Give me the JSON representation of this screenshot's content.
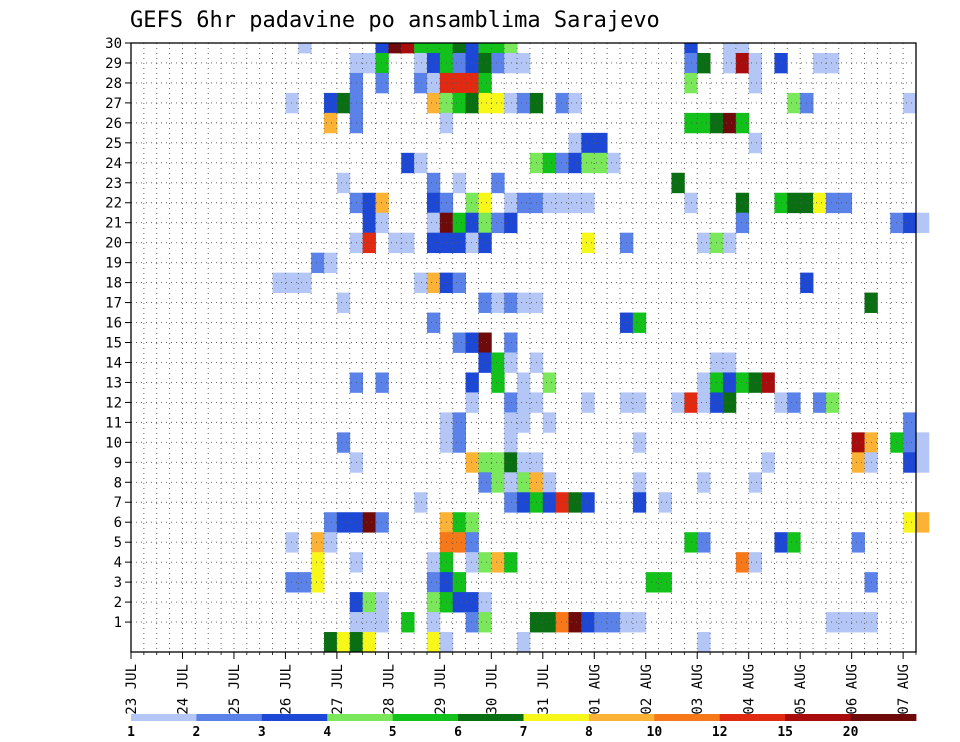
{
  "chart_data": {
    "type": "heatmap",
    "title": "GEFS 6hr padavine po ansamblima Sarajevo",
    "xlabel": "",
    "ylabel": "",
    "y_ticks": [
      1,
      2,
      3,
      4,
      5,
      6,
      7,
      8,
      9,
      10,
      11,
      12,
      13,
      14,
      15,
      16,
      17,
      18,
      19,
      20,
      21,
      22,
      23,
      24,
      25,
      26,
      27,
      28,
      29,
      30
    ],
    "x_tick_labels": [
      "23 JUL",
      "24 JUL",
      "25 JUL",
      "26 JUL",
      "27 JUL",
      "28 JUL",
      "29 JUL",
      "30 JUL",
      "31 JUL",
      "01 AUG",
      "02 AUG",
      "03 AUG",
      "04 AUG",
      "05 AUG",
      "06 AUG",
      "07 AUG"
    ],
    "x_range_6h_steps": [
      0,
      61
    ],
    "grid": true,
    "colorbar": {
      "placement": "bottom",
      "labels": [
        "1",
        "2",
        "3",
        "4",
        "5",
        "6",
        "7",
        "8",
        "10",
        "12",
        "15",
        "20"
      ],
      "colors": [
        "#b3c6f5",
        "#5a82e8",
        "#1d48d6",
        "#7ae85a",
        "#12c21a",
        "#0a6e12",
        "#f7f71a",
        "#fcb234",
        "#f77818",
        "#e02a12",
        "#a80c0c",
        "#6e0a0a"
      ]
    },
    "cells": [
      [
        30,
        13,
        0
      ],
      [
        30,
        19,
        2
      ],
      [
        30,
        20,
        11
      ],
      [
        30,
        21,
        10
      ],
      [
        30,
        22,
        4
      ],
      [
        30,
        23,
        4
      ],
      [
        30,
        24,
        4
      ],
      [
        30,
        25,
        5
      ],
      [
        30,
        26,
        2
      ],
      [
        30,
        27,
        4
      ],
      [
        30,
        28,
        4
      ],
      [
        30,
        29,
        3
      ],
      [
        30,
        43,
        2
      ],
      [
        30,
        46,
        0
      ],
      [
        30,
        47,
        0
      ],
      [
        29,
        17,
        0
      ],
      [
        29,
        18,
        0
      ],
      [
        29,
        19,
        4
      ],
      [
        29,
        22,
        0
      ],
      [
        29,
        23,
        2
      ],
      [
        29,
        24,
        4
      ],
      [
        29,
        25,
        1
      ],
      [
        29,
        26,
        2
      ],
      [
        29,
        27,
        5
      ],
      [
        29,
        28,
        1
      ],
      [
        29,
        29,
        0
      ],
      [
        29,
        30,
        0
      ],
      [
        29,
        43,
        1
      ],
      [
        29,
        44,
        5
      ],
      [
        29,
        46,
        0
      ],
      [
        29,
        47,
        10
      ],
      [
        29,
        48,
        0
      ],
      [
        29,
        50,
        2
      ],
      [
        29,
        53,
        0
      ],
      [
        29,
        54,
        0
      ],
      [
        28,
        17,
        1
      ],
      [
        28,
        19,
        1
      ],
      [
        28,
        22,
        1
      ],
      [
        28,
        23,
        0
      ],
      [
        28,
        24,
        9
      ],
      [
        28,
        25,
        9
      ],
      [
        28,
        26,
        9
      ],
      [
        28,
        27,
        4
      ],
      [
        28,
        43,
        3
      ],
      [
        28,
        48,
        0
      ],
      [
        27,
        12,
        0
      ],
      [
        27,
        15,
        2
      ],
      [
        27,
        16,
        5
      ],
      [
        27,
        17,
        1
      ],
      [
        27,
        23,
        7
      ],
      [
        27,
        24,
        3
      ],
      [
        27,
        25,
        4
      ],
      [
        27,
        26,
        5
      ],
      [
        27,
        27,
        6
      ],
      [
        27,
        28,
        6
      ],
      [
        27,
        29,
        0
      ],
      [
        27,
        30,
        1
      ],
      [
        27,
        31,
        5
      ],
      [
        27,
        33,
        1
      ],
      [
        27,
        34,
        0
      ],
      [
        27,
        51,
        3
      ],
      [
        27,
        52,
        1
      ],
      [
        27,
        60,
        0
      ],
      [
        26,
        15,
        7
      ],
      [
        26,
        17,
        1
      ],
      [
        26,
        24,
        0
      ],
      [
        26,
        43,
        4
      ],
      [
        26,
        44,
        4
      ],
      [
        26,
        45,
        5
      ],
      [
        26,
        46,
        11
      ],
      [
        26,
        47,
        4
      ],
      [
        25,
        34,
        0
      ],
      [
        25,
        35,
        2
      ],
      [
        25,
        36,
        2
      ],
      [
        25,
        48,
        0
      ],
      [
        24,
        21,
        2
      ],
      [
        24,
        22,
        0
      ],
      [
        24,
        31,
        3
      ],
      [
        24,
        32,
        4
      ],
      [
        24,
        33,
        1
      ],
      [
        24,
        34,
        2
      ],
      [
        24,
        35,
        3
      ],
      [
        24,
        36,
        3
      ],
      [
        24,
        37,
        0
      ],
      [
        23,
        16,
        0
      ],
      [
        23,
        23,
        1
      ],
      [
        23,
        25,
        0
      ],
      [
        23,
        28,
        1
      ],
      [
        23,
        42,
        5
      ],
      [
        22,
        17,
        1
      ],
      [
        22,
        18,
        2
      ],
      [
        22,
        19,
        7
      ],
      [
        22,
        23,
        2
      ],
      [
        22,
        24,
        1
      ],
      [
        22,
        26,
        3
      ],
      [
        22,
        27,
        6
      ],
      [
        22,
        29,
        0
      ],
      [
        22,
        30,
        1
      ],
      [
        22,
        31,
        1
      ],
      [
        22,
        32,
        0
      ],
      [
        22,
        33,
        0
      ],
      [
        22,
        34,
        0
      ],
      [
        22,
        35,
        0
      ],
      [
        22,
        43,
        0
      ],
      [
        22,
        47,
        5
      ],
      [
        22,
        50,
        4
      ],
      [
        22,
        51,
        5
      ],
      [
        22,
        52,
        5
      ],
      [
        22,
        53,
        6
      ],
      [
        22,
        54,
        1
      ],
      [
        22,
        55,
        1
      ],
      [
        21,
        18,
        2
      ],
      [
        21,
        19,
        0
      ],
      [
        21,
        23,
        0
      ],
      [
        21,
        24,
        11
      ],
      [
        21,
        25,
        4
      ],
      [
        21,
        26,
        2
      ],
      [
        21,
        27,
        3
      ],
      [
        21,
        28,
        1
      ],
      [
        21,
        29,
        2
      ],
      [
        21,
        47,
        1
      ],
      [
        21,
        59,
        1
      ],
      [
        21,
        60,
        2
      ],
      [
        21,
        61,
        0
      ],
      [
        20,
        17,
        0
      ],
      [
        20,
        18,
        9
      ],
      [
        20,
        20,
        0
      ],
      [
        20,
        21,
        0
      ],
      [
        20,
        23,
        2
      ],
      [
        20,
        24,
        2
      ],
      [
        20,
        25,
        2
      ],
      [
        20,
        26,
        0
      ],
      [
        20,
        27,
        2
      ],
      [
        20,
        35,
        6
      ],
      [
        20,
        38,
        1
      ],
      [
        20,
        44,
        0
      ],
      [
        20,
        45,
        3
      ],
      [
        20,
        46,
        0
      ],
      [
        19,
        14,
        1
      ],
      [
        19,
        15,
        0
      ],
      [
        18,
        11,
        0
      ],
      [
        18,
        12,
        0
      ],
      [
        18,
        13,
        0
      ],
      [
        18,
        22,
        0
      ],
      [
        18,
        23,
        7
      ],
      [
        18,
        24,
        2
      ],
      [
        18,
        25,
        1
      ],
      [
        18,
        52,
        2
      ],
      [
        17,
        16,
        0
      ],
      [
        17,
        27,
        1
      ],
      [
        17,
        28,
        0
      ],
      [
        17,
        29,
        1
      ],
      [
        17,
        30,
        0
      ],
      [
        17,
        31,
        0
      ],
      [
        17,
        57,
        5
      ],
      [
        16,
        23,
        1
      ],
      [
        16,
        38,
        2
      ],
      [
        16,
        39,
        4
      ],
      [
        15,
        25,
        1
      ],
      [
        15,
        26,
        2
      ],
      [
        15,
        27,
        11
      ],
      [
        15,
        29,
        1
      ],
      [
        14,
        27,
        2
      ],
      [
        14,
        28,
        4
      ],
      [
        14,
        29,
        0
      ],
      [
        14,
        31,
        0
      ],
      [
        14,
        45,
        0
      ],
      [
        14,
        46,
        0
      ],
      [
        13,
        17,
        1
      ],
      [
        13,
        19,
        1
      ],
      [
        13,
        26,
        2
      ],
      [
        13,
        28,
        4
      ],
      [
        13,
        30,
        0
      ],
      [
        13,
        32,
        3
      ],
      [
        13,
        44,
        0
      ],
      [
        13,
        45,
        4
      ],
      [
        13,
        46,
        2
      ],
      [
        13,
        47,
        4
      ],
      [
        13,
        48,
        5
      ],
      [
        13,
        49,
        10
      ],
      [
        12,
        26,
        0
      ],
      [
        12,
        29,
        1
      ],
      [
        12,
        30,
        0
      ],
      [
        12,
        31,
        0
      ],
      [
        12,
        35,
        0
      ],
      [
        12,
        38,
        0
      ],
      [
        12,
        39,
        0
      ],
      [
        12,
        42,
        0
      ],
      [
        12,
        43,
        9
      ],
      [
        12,
        44,
        0
      ],
      [
        12,
        45,
        2
      ],
      [
        12,
        46,
        5
      ],
      [
        12,
        50,
        0
      ],
      [
        12,
        51,
        1
      ],
      [
        12,
        53,
        1
      ],
      [
        12,
        54,
        3
      ],
      [
        11,
        24,
        0
      ],
      [
        11,
        25,
        1
      ],
      [
        11,
        29,
        0
      ],
      [
        11,
        30,
        0
      ],
      [
        11,
        32,
        0
      ],
      [
        11,
        60,
        1
      ],
      [
        10,
        16,
        1
      ],
      [
        10,
        24,
        0
      ],
      [
        10,
        25,
        1
      ],
      [
        10,
        29,
        0
      ],
      [
        10,
        39,
        0
      ],
      [
        10,
        56,
        10
      ],
      [
        10,
        57,
        7
      ],
      [
        10,
        59,
        4
      ],
      [
        10,
        60,
        1
      ],
      [
        10,
        61,
        0
      ],
      [
        9,
        17,
        0
      ],
      [
        9,
        26,
        7
      ],
      [
        9,
        27,
        3
      ],
      [
        9,
        28,
        3
      ],
      [
        9,
        29,
        5
      ],
      [
        9,
        30,
        0
      ],
      [
        9,
        31,
        0
      ],
      [
        9,
        49,
        0
      ],
      [
        9,
        56,
        7
      ],
      [
        9,
        57,
        0
      ],
      [
        9,
        60,
        2
      ],
      [
        9,
        61,
        0
      ],
      [
        8,
        27,
        1
      ],
      [
        8,
        28,
        3
      ],
      [
        8,
        29,
        0
      ],
      [
        8,
        30,
        3
      ],
      [
        8,
        31,
        7
      ],
      [
        8,
        32,
        0
      ],
      [
        8,
        39,
        0
      ],
      [
        8,
        44,
        0
      ],
      [
        8,
        48,
        0
      ],
      [
        7,
        22,
        0
      ],
      [
        7,
        29,
        1
      ],
      [
        7,
        30,
        2
      ],
      [
        7,
        31,
        4
      ],
      [
        7,
        32,
        2
      ],
      [
        7,
        33,
        9
      ],
      [
        7,
        34,
        5
      ],
      [
        7,
        35,
        2
      ],
      [
        7,
        39,
        2
      ],
      [
        7,
        41,
        0
      ],
      [
        6,
        15,
        1
      ],
      [
        6,
        16,
        2
      ],
      [
        6,
        17,
        2
      ],
      [
        6,
        18,
        11
      ],
      [
        6,
        19,
        1
      ],
      [
        6,
        24,
        7
      ],
      [
        6,
        25,
        4
      ],
      [
        6,
        26,
        3
      ],
      [
        6,
        60,
        6
      ],
      [
        6,
        61,
        7
      ],
      [
        5,
        12,
        0
      ],
      [
        5,
        14,
        7
      ],
      [
        5,
        15,
        0
      ],
      [
        5,
        24,
        8
      ],
      [
        5,
        25,
        8
      ],
      [
        5,
        26,
        1
      ],
      [
        5,
        43,
        4
      ],
      [
        5,
        44,
        1
      ],
      [
        5,
        50,
        2
      ],
      [
        5,
        51,
        4
      ],
      [
        5,
        56,
        1
      ],
      [
        4,
        14,
        6
      ],
      [
        4,
        17,
        0
      ],
      [
        4,
        23,
        0
      ],
      [
        4,
        24,
        4
      ],
      [
        4,
        26,
        0
      ],
      [
        4,
        27,
        3
      ],
      [
        4,
        28,
        7
      ],
      [
        4,
        29,
        4
      ],
      [
        4,
        47,
        8
      ],
      [
        4,
        48,
        0
      ],
      [
        3,
        12,
        1
      ],
      [
        3,
        13,
        1
      ],
      [
        3,
        14,
        6
      ],
      [
        3,
        23,
        1
      ],
      [
        3,
        24,
        2
      ],
      [
        3,
        25,
        4
      ],
      [
        3,
        40,
        4
      ],
      [
        3,
        41,
        4
      ],
      [
        3,
        57,
        1
      ],
      [
        2,
        17,
        2
      ],
      [
        2,
        18,
        3
      ],
      [
        2,
        19,
        0
      ],
      [
        2,
        23,
        3
      ],
      [
        2,
        24,
        4
      ],
      [
        2,
        25,
        2
      ],
      [
        2,
        26,
        2
      ],
      [
        2,
        27,
        0
      ],
      [
        1,
        17,
        0
      ],
      [
        1,
        18,
        0
      ],
      [
        1,
        19,
        0
      ],
      [
        1,
        21,
        4
      ],
      [
        1,
        23,
        0
      ],
      [
        1,
        26,
        1
      ],
      [
        1,
        27,
        3
      ],
      [
        1,
        31,
        5
      ],
      [
        1,
        32,
        5
      ],
      [
        1,
        33,
        8
      ],
      [
        1,
        34,
        11
      ],
      [
        1,
        35,
        2
      ],
      [
        1,
        36,
        1
      ],
      [
        1,
        37,
        1
      ],
      [
        1,
        38,
        0
      ],
      [
        1,
        39,
        0
      ],
      [
        1,
        54,
        0
      ],
      [
        1,
        55,
        0
      ],
      [
        1,
        56,
        0
      ],
      [
        1,
        57,
        0
      ],
      [
        0,
        15,
        5
      ],
      [
        0,
        16,
        6
      ],
      [
        0,
        17,
        5
      ],
      [
        0,
        18,
        6
      ],
      [
        0,
        23,
        6
      ],
      [
        0,
        24,
        0
      ],
      [
        0,
        30,
        0
      ],
      [
        0,
        44,
        0
      ]
    ]
  }
}
